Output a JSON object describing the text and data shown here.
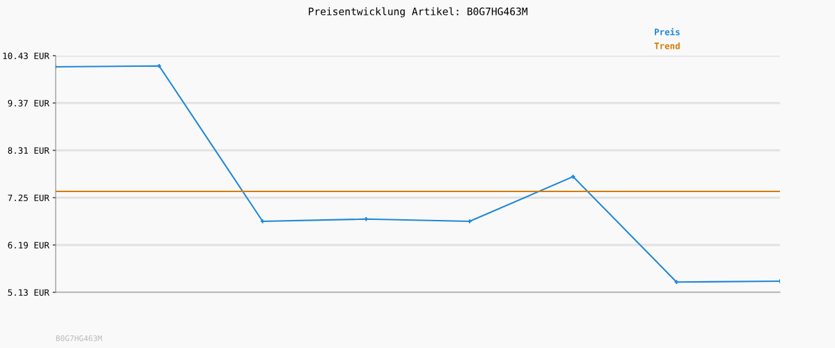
{
  "chart_data": {
    "type": "line",
    "title": "Preisentwicklung Artikel: B0G7HG463M",
    "categories": [
      null,
      null,
      null,
      null,
      null,
      null,
      null,
      null
    ],
    "series": [
      {
        "name": "Preis",
        "color": "#1f88d6",
        "values": [
          10.18,
          10.2,
          6.72,
          6.77,
          6.72,
          7.72,
          5.36,
          5.38
        ],
        "marker": "cross"
      },
      {
        "name": "Trend",
        "color": "#d87a00",
        "values": [
          7.39,
          7.39,
          7.39,
          7.39,
          7.39,
          7.39,
          7.39,
          7.39
        ],
        "marker": "none"
      }
    ],
    "ylim": [
      5.13,
      10.43
    ],
    "yticks": [
      {
        "value": 5.13,
        "label": "5.13 EUR"
      },
      {
        "value": 6.19,
        "label": "6.19 EUR"
      },
      {
        "value": 7.25,
        "label": "7.25 EUR"
      },
      {
        "value": 8.31,
        "label": "8.31 EUR"
      },
      {
        "value": 9.37,
        "label": "9.37 EUR"
      },
      {
        "value": 10.43,
        "label": "10.43 EUR"
      }
    ],
    "grid": "y",
    "legend": "top right",
    "tick_labels": "y",
    "line_style": "solid",
    "annotations": [
      "B0G7HG463M"
    ]
  }
}
